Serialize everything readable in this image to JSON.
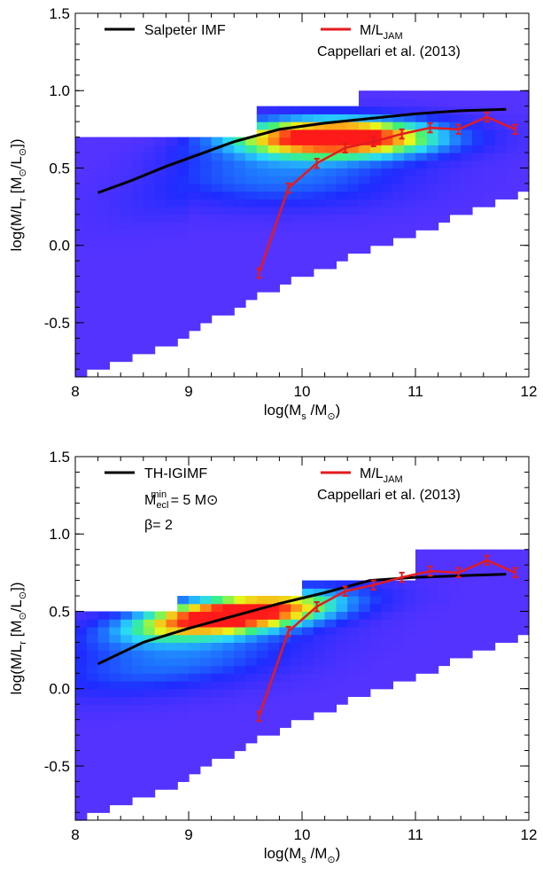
{
  "chart_data": [
    {
      "type": "heatmap",
      "xlabel_parts": [
        "log(M",
        "s",
        " /M",
        "⊙",
        ")"
      ],
      "ylabel_parts": [
        "log(M/L",
        "r",
        " [M",
        "⊙",
        "/L",
        "⊙",
        "])"
      ],
      "xlim": [
        8,
        12
      ],
      "ylim": [
        -0.85,
        1.5
      ],
      "xticks": [
        "8",
        "9",
        "10",
        "11",
        "12"
      ],
      "yticks": [
        "-0.5",
        "0.0",
        "0.5",
        "1.0",
        "1.5"
      ],
      "legend_black": {
        "label": "Salpeter IMF",
        "extra": []
      },
      "legend_red": {
        "label_main": "M/L",
        "label_sub": "JAM",
        "source": "Cappellari et al. (2013)"
      },
      "colors": {
        "black_line": "#000000",
        "red_line": "#e41a1c"
      },
      "density_peak": "orange-red band near log(M/L)≈0.7 at log(Ms)≈10–11",
      "black_series": {
        "x": [
          8.2,
          8.5,
          8.8,
          9.1,
          9.4,
          9.8,
          10.2,
          10.6,
          11.0,
          11.4,
          11.8
        ],
        "y": [
          0.34,
          0.42,
          0.51,
          0.59,
          0.67,
          0.75,
          0.79,
          0.82,
          0.85,
          0.87,
          0.88
        ]
      },
      "red_series": {
        "x": [
          9.62,
          9.88,
          10.13,
          10.38,
          10.63,
          10.88,
          11.13,
          11.38,
          11.63,
          11.88
        ],
        "y": [
          -0.18,
          0.37,
          0.53,
          0.63,
          0.67,
          0.72,
          0.76,
          0.75,
          0.83,
          0.75
        ],
        "err": [
          0.03,
          0.03,
          0.03,
          0.03,
          0.03,
          0.03,
          0.03,
          0.03,
          0.03,
          0.03
        ]
      }
    },
    {
      "type": "heatmap",
      "xlabel_parts": [
        "log(M",
        "s",
        " /M",
        "⊙",
        ")"
      ],
      "ylabel_parts": [
        "log(M/L",
        "r",
        " [M",
        "⊙",
        "/L",
        "⊙",
        "])"
      ],
      "xlim": [
        8,
        12
      ],
      "ylim": [
        -0.85,
        1.5
      ],
      "xticks": [
        "8",
        "9",
        "10",
        "11",
        "12"
      ],
      "yticks": [
        "-0.5",
        "0.0",
        "0.5",
        "1.0",
        "1.5"
      ],
      "legend_black": {
        "label": "TH-IGIMF",
        "extra": [
          "M",
          "ecl",
          "min",
          " = 5 M",
          "⊙",
          "β= 2"
        ]
      },
      "legend_red": {
        "label_main": "M/L",
        "label_sub": "JAM",
        "source": "Cappellari et al. (2013)"
      },
      "colors": {
        "black_line": "#000000",
        "red_line": "#e41a1c"
      },
      "density_peak": "orange-red band near log(M/L)≈0.4 at log(Ms)≈9–9.5",
      "black_series": {
        "x": [
          8.2,
          8.6,
          9.0,
          9.4,
          9.8,
          10.2,
          10.6,
          11.0,
          11.4,
          11.8
        ],
        "y": [
          0.16,
          0.3,
          0.39,
          0.47,
          0.55,
          0.62,
          0.7,
          0.72,
          0.73,
          0.74
        ]
      },
      "red_series": {
        "x": [
          9.62,
          9.88,
          10.13,
          10.38,
          10.63,
          10.88,
          11.13,
          11.38,
          11.63,
          11.88
        ],
        "y": [
          -0.18,
          0.37,
          0.53,
          0.63,
          0.67,
          0.72,
          0.76,
          0.75,
          0.83,
          0.75
        ],
        "err": [
          0.03,
          0.03,
          0.03,
          0.03,
          0.03,
          0.03,
          0.03,
          0.03,
          0.03,
          0.03
        ]
      }
    }
  ]
}
